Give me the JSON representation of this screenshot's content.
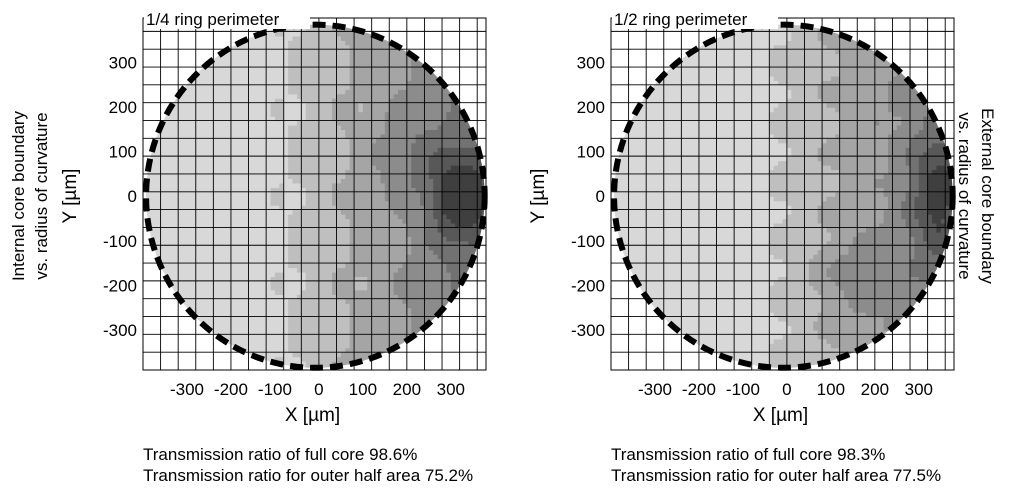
{
  "figure": {
    "panels": [
      {
        "title": "1/4 ring perimeter",
        "side_label_line1": "Internal core boundary",
        "side_label_line2": "vs. radius of curvature",
        "caption_line1": "Transmission ratio of full core 98.6%",
        "caption_line2": "Transmission ratio for outer half area 75.2%"
      },
      {
        "title": "1/2 ring perimeter",
        "side_label_line1": "External core boundary",
        "side_label_line2": "vs. radius of curvature",
        "caption_line1": "Transmission ratio of full core 98.3%",
        "caption_line2": "Transmission ratio for outer half area 77.5%"
      }
    ]
  },
  "chart_data": [
    {
      "type": "heatmap",
      "subtype": "contour",
      "title": "1/4 ring perimeter",
      "xlabel": "X [µm]",
      "ylabel": "Y [µm]",
      "xlim": [
        -400,
        380
      ],
      "ylim": [
        -390,
        400
      ],
      "xticks": [
        -300,
        -200,
        -100,
        0,
        100,
        200,
        300
      ],
      "yticks": [
        -300,
        -200,
        -100,
        0,
        100,
        200,
        300
      ],
      "xtick_labels": [
        "-300",
        "-200",
        "-100",
        "0",
        "100",
        "200",
        "300"
      ],
      "ytick_labels": [
        "-300",
        "-200",
        "-100",
        "0",
        "100",
        "200",
        "300"
      ],
      "grid": true,
      "grid_step": 40,
      "core_boundary": {
        "center": [
          -8,
          0
        ],
        "radius_x": 385,
        "radius_y": 385,
        "style": "thick dashed"
      },
      "intensity_model": {
        "description": "darker toward +X edge, darkest near (320, 0)",
        "max_level": 0.85
      },
      "levels": 8
    },
    {
      "type": "heatmap",
      "subtype": "contour",
      "title": "1/2 ring perimeter",
      "xlabel": "X [µm]",
      "ylabel": "Y [µm]",
      "xlim": [
        -400,
        380
      ],
      "ylim": [
        -390,
        400
      ],
      "xticks": [
        -300,
        -200,
        -100,
        0,
        100,
        200,
        300
      ],
      "yticks": [
        -300,
        -200,
        -100,
        0,
        100,
        200,
        300
      ],
      "xtick_labels": [
        "-300",
        "-200",
        "-100",
        "0",
        "100",
        "200",
        "300"
      ],
      "ytick_labels": [
        "-300",
        "-200",
        "-100",
        "0",
        "100",
        "200",
        "300"
      ],
      "grid": true,
      "grid_step": 40,
      "core_boundary": {
        "center": [
          -8,
          0
        ],
        "radius_x": 385,
        "radius_y": 385,
        "style": "thick dashed"
      },
      "intensity_model": {
        "description": "darker toward +X edge, darkest near (340, 0)",
        "max_level": 0.8
      },
      "levels": 8
    }
  ]
}
